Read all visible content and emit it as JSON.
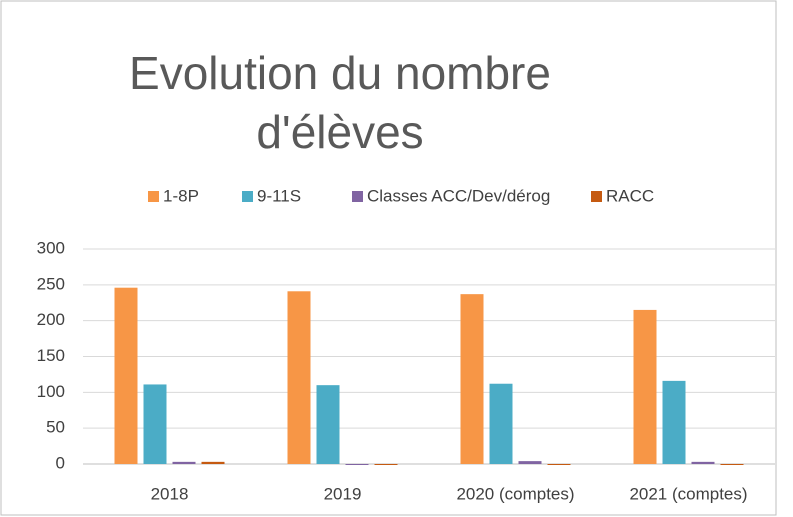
{
  "chart_data": {
    "type": "bar",
    "title_lines": [
      "Evolution du nombre",
      "d'élèves"
    ],
    "categories": [
      "2018",
      "2019",
      "2020 (comptes)",
      "2021 (comptes)"
    ],
    "series": [
      {
        "name": "1-8P",
        "color": "#f79646",
        "values": [
          246,
          241,
          237,
          215
        ]
      },
      {
        "name": "9-11S",
        "color": "#4bacc6",
        "values": [
          111,
          110,
          112,
          116
        ]
      },
      {
        "name": "Classes ACC/Dev/dérog",
        "color": "#8064a2",
        "values": [
          3,
          0,
          4,
          3
        ]
      },
      {
        "name": "RACC",
        "color": "#c55a11",
        "values": [
          3,
          0,
          0,
          0
        ]
      }
    ],
    "ylim": [
      0,
      300
    ],
    "yticks": [
      0,
      50,
      100,
      150,
      200,
      250,
      300
    ],
    "grid": true,
    "legend": "top"
  }
}
